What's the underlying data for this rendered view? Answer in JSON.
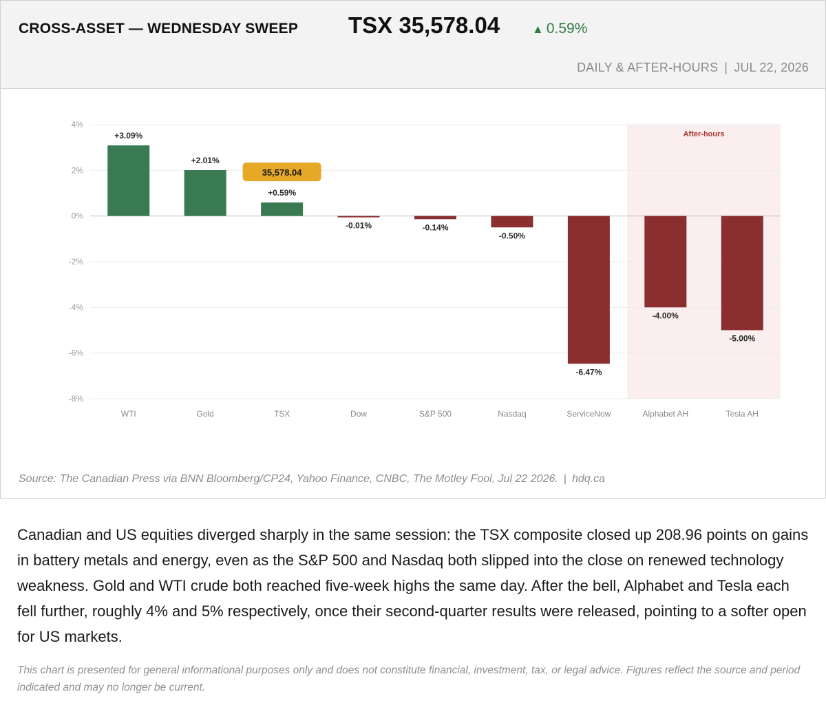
{
  "header": {
    "title": "CROSS-ASSET — WEDNESDAY SWEEP",
    "index_value": "TSX 35,578.04",
    "change_arrow": "▲",
    "change_text": "0.59%",
    "period_label": "DAILY & AFTER-HOURS",
    "separator": "|",
    "date_label": "JUL 22, 2026"
  },
  "colors": {
    "positive": "#3a7a52",
    "negative": "#8b2e30",
    "highlight": "#e8a827",
    "after_hours_band": "#fbeeee",
    "after_hours_text": "#a8342f",
    "header_change": "#2f7d3e"
  },
  "chart_data": {
    "type": "bar",
    "categories": [
      "WTI",
      "Gold",
      "TSX",
      "Dow",
      "S&P 500",
      "Nasdaq",
      "ServiceNow",
      "Alphabet AH",
      "Tesla AH"
    ],
    "values": [
      3.09,
      2.01,
      0.59,
      -0.01,
      -0.14,
      -0.5,
      -6.47,
      -4.0,
      -5.0
    ],
    "data_labels": [
      "+3.09%",
      "+2.01%",
      "+0.59%",
      "-0.01%",
      "-0.14%",
      "-0.50%",
      "-6.47%",
      "-4.00%",
      "-5.00%"
    ],
    "ylim": [
      -8,
      4
    ],
    "yticks": [
      4,
      2,
      0,
      -2,
      -4,
      -6,
      -8
    ],
    "ytick_labels": [
      "4%",
      "2%",
      "0%",
      "-2%",
      "-4%",
      "-6%",
      "-8%"
    ],
    "grid": true,
    "shaded_region": {
      "label": "After-hours",
      "categories": [
        "Alphabet AH",
        "Tesla AH"
      ]
    },
    "callout": {
      "category": "TSX",
      "text": "35,578.04"
    }
  },
  "footer": {
    "source_text": "Source: The Canadian Press via BNN Bloomberg/CP24, Yahoo Finance, CNBC, The Motley Fool, Jul 22 2026.",
    "separator": "|",
    "site": "hdq.ca"
  },
  "commentary": "Canadian and US equities diverged sharply in the same session: the TSX composite closed up 208.96 points on gains in battery metals and energy, even as the S&P 500 and Nasdaq both slipped into the close on renewed technology weakness. Gold and WTI crude both reached five-week highs the same day. After the bell, Alphabet and Tesla each fell further, roughly 4% and 5% respectively, once their second-quarter results were released, pointing to a softer open for US markets.",
  "disclaimer": "This chart is presented for general informational purposes only and does not constitute financial, investment, tax, or legal advice. Figures reflect the source and period indicated and may no longer be current."
}
